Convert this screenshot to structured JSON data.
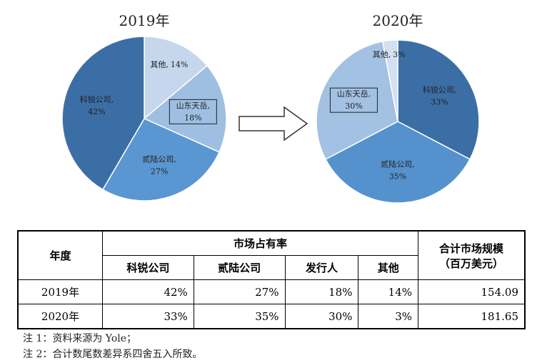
{
  "chart_data": [
    {
      "type": "pie",
      "title": "2019年",
      "categories": [
        "其他,",
        "山东天岳,",
        "贰陆公司,",
        "科锐公司,"
      ],
      "values": [
        14,
        18,
        27,
        42
      ],
      "value_labels": [
        "14%",
        "18%",
        "27%",
        "42%"
      ],
      "colors": [
        "#c6d6ec",
        "#9ebfe2",
        "#5a96d1",
        "#3c6ea6"
      ]
    },
    {
      "type": "pie",
      "title": "2020年",
      "categories": [
        "科锐公司,",
        "贰陆公司,",
        "山东天岳,",
        "其他,"
      ],
      "values": [
        33,
        35,
        30,
        3
      ],
      "value_labels": [
        "33%",
        "35%",
        "30%",
        "3%"
      ],
      "colors": [
        "#3c6ea6",
        "#5592cd",
        "#a3c1e3",
        "#d2e0f1"
      ]
    }
  ],
  "table": {
    "header": {
      "year": "年度",
      "share": "市场占有率",
      "total": [
        "合计市场规模",
        "（百万美元）"
      ],
      "companies": [
        "科锐公司",
        "贰陆公司",
        "发行人",
        "其他"
      ]
    },
    "rows": [
      [
        "2019年",
        "42%",
        "27%",
        "18%",
        "14%",
        "154.09"
      ],
      [
        "2020年",
        "33%",
        "35%",
        "30%",
        "3%",
        "181.65"
      ]
    ]
  },
  "notes": [
    "注 1：资料来源为 Yole；",
    "注 2：合计数尾数差异系四舍五入所致。"
  ]
}
